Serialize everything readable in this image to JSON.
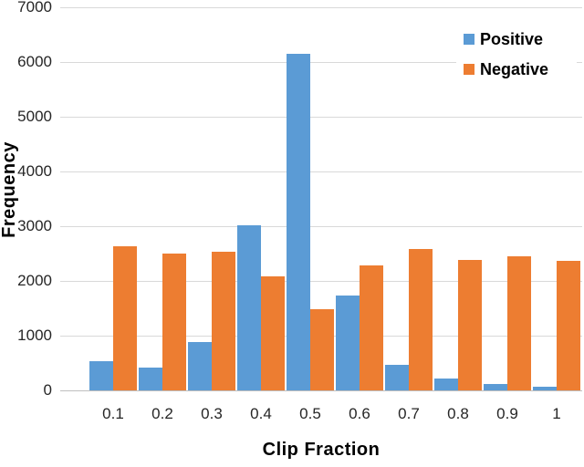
{
  "chart_data": {
    "type": "bar",
    "title": "",
    "xlabel": "Clip Fraction",
    "ylabel": "Frequency",
    "categories": [
      "0.1",
      "0.2",
      "0.3",
      "0.4",
      "0.5",
      "0.6",
      "0.7",
      "0.8",
      "0.9",
      "1"
    ],
    "series": [
      {
        "name": "Positive",
        "color": "#5B9BD5",
        "values": [
          540,
          420,
          890,
          3020,
          6150,
          1740,
          460,
          220,
          110,
          70
        ]
      },
      {
        "name": "Negative",
        "color": "#ED7D31",
        "values": [
          2640,
          2500,
          2530,
          2090,
          1480,
          2280,
          2590,
          2390,
          2450,
          2370
        ]
      }
    ],
    "ylim": [
      0,
      7000
    ],
    "ytick_step": 1000,
    "grid": true,
    "gridline_color": "#D9D9D9",
    "legend_position": "top-right"
  }
}
